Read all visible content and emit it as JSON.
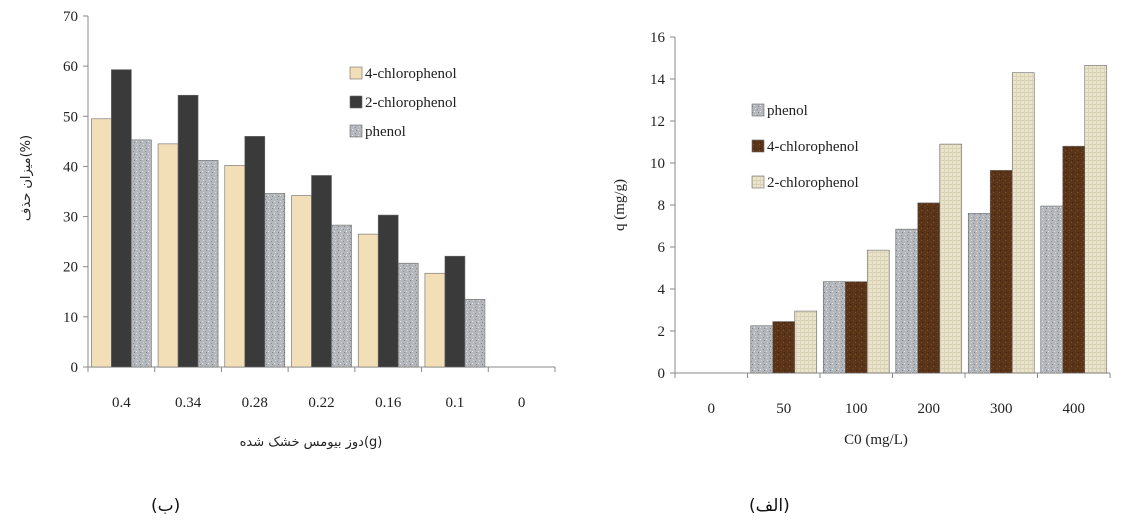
{
  "captions": {
    "left": "(ب)",
    "right": "(الف)"
  },
  "colors": {
    "beige": "#f2dfb8",
    "dark": "#3a3a3a",
    "gray": "#b4b8bc",
    "brown": "#5a3418",
    "light": "#ebe4cc"
  },
  "chart_data": [
    {
      "id": "left",
      "type": "bar",
      "xlabel": "دوز بیومس خشک شده(g)",
      "ylabel": "میزان حذف(%)",
      "ylim": [
        0,
        70
      ],
      "yticks": [
        0,
        10,
        20,
        30,
        40,
        50,
        60,
        70
      ],
      "categories": [
        "0.4",
        "0.34",
        "0.28",
        "0.22",
        "0.16",
        "0.1",
        "0"
      ],
      "legend_position": "top-right",
      "series": [
        {
          "name": "4-chlorophenol",
          "color": "#f2dfb8",
          "values": [
            49.5,
            44.5,
            40.2,
            34.2,
            26.5,
            18.7,
            0
          ]
        },
        {
          "name": "2-chlorophenol",
          "color": "#3a3a3a",
          "values": [
            59.3,
            54.2,
            46,
            38.2,
            30.3,
            22.1,
            0
          ]
        },
        {
          "name": "phenol",
          "color": "#b4b8bc",
          "values": [
            45.3,
            41.2,
            34.6,
            28.3,
            20.7,
            13.5,
            0
          ]
        }
      ]
    },
    {
      "id": "right",
      "type": "bar",
      "xlabel": "C0 (mg/L)",
      "ylabel": "q (mg/g)",
      "ylim": [
        0,
        16
      ],
      "yticks": [
        0,
        2,
        4,
        6,
        8,
        10,
        12,
        14,
        16
      ],
      "categories": [
        "0",
        "50",
        "100",
        "200",
        "300",
        "400"
      ],
      "legend_position": "top-left",
      "series": [
        {
          "name": "phenol",
          "color": "#b4b8bc",
          "values": [
            0,
            2.25,
            4.35,
            6.85,
            7.6,
            7.95
          ]
        },
        {
          "name": "4-chlorophenol",
          "color": "#5a3418",
          "values": [
            0,
            2.45,
            4.35,
            8.1,
            9.65,
            10.8
          ]
        },
        {
          "name": "2-chlorophenol",
          "color": "#ebe4cc",
          "values": [
            0,
            2.95,
            5.85,
            10.9,
            14.3,
            14.65
          ]
        }
      ]
    }
  ]
}
